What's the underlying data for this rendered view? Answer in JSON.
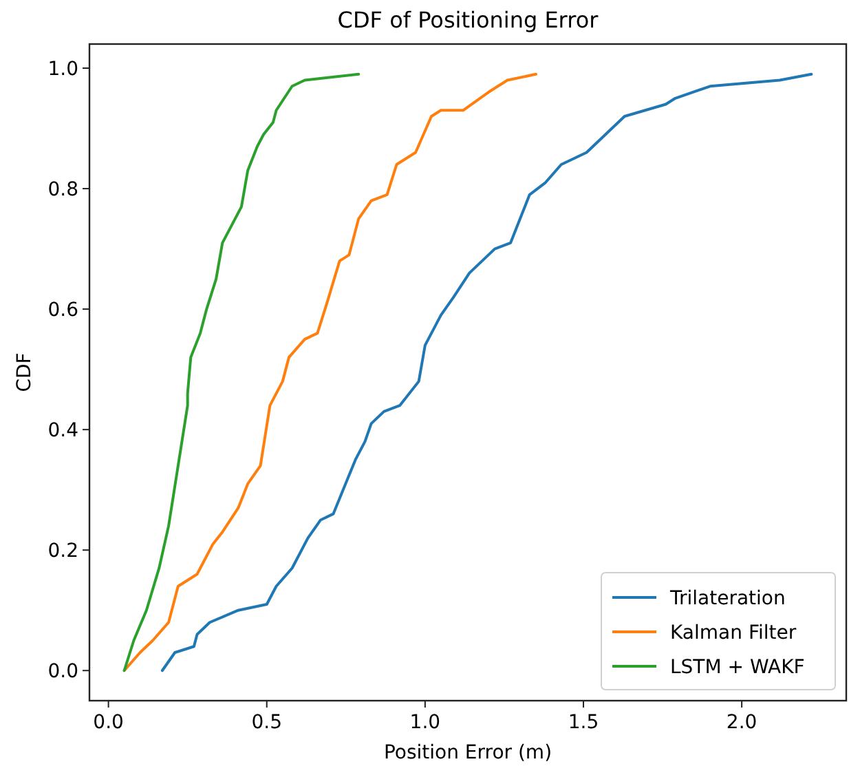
{
  "chart_data": {
    "type": "line",
    "title": "CDF of Positioning Error",
    "xlabel": "Position Error (m)",
    "ylabel": "CDF",
    "xlim": [
      -0.06,
      2.33
    ],
    "ylim": [
      -0.05,
      1.04
    ],
    "xticks": [
      {
        "value": 0,
        "label": "0.0"
      },
      {
        "value": 0.5,
        "label": "0.5"
      },
      {
        "value": 1,
        "label": "1.0"
      },
      {
        "value": 1.5,
        "label": "1.5"
      },
      {
        "value": 2,
        "label": "2.0"
      }
    ],
    "yticks": [
      {
        "value": 0,
        "label": "0.0"
      },
      {
        "value": 0.2,
        "label": "0.2"
      },
      {
        "value": 0.4,
        "label": "0.4"
      },
      {
        "value": 0.6,
        "label": "0.6"
      },
      {
        "value": 0.8,
        "label": "0.8"
      },
      {
        "value": 1,
        "label": "1.0"
      }
    ],
    "grid": false,
    "legend": "bottom right",
    "marker": "none",
    "line_style": "solid",
    "series": [
      {
        "name": "Trilateration",
        "color": "#1f77b4",
        "x": [
          0.17,
          0.21,
          0.27,
          0.28,
          0.32,
          0.41,
          0.5,
          0.53,
          0.58,
          0.63,
          0.67,
          0.71,
          0.78,
          0.81,
          0.83,
          0.87,
          0.92,
          0.98,
          1.0,
          1.05,
          1.09,
          1.14,
          1.22,
          1.27,
          1.3,
          1.33,
          1.38,
          1.43,
          1.51,
          1.57,
          1.63,
          1.76,
          1.79,
          1.9,
          2.12,
          2.22
        ],
        "values": [
          0,
          0.03,
          0.04,
          0.06,
          0.08,
          0.1,
          0.11,
          0.14,
          0.17,
          0.22,
          0.25,
          0.26,
          0.35,
          0.38,
          0.41,
          0.43,
          0.44,
          0.48,
          0.54,
          0.59,
          0.62,
          0.66,
          0.7,
          0.71,
          0.75,
          0.79,
          0.81,
          0.84,
          0.86,
          0.89,
          0.92,
          0.94,
          0.95,
          0.97,
          0.98,
          0.99
        ]
      },
      {
        "name": "Kalman Filter",
        "color": "#ff7f0e",
        "x": [
          0.05,
          0.1,
          0.14,
          0.19,
          0.22,
          0.28,
          0.33,
          0.36,
          0.41,
          0.44,
          0.48,
          0.51,
          0.55,
          0.57,
          0.62,
          0.66,
          0.69,
          0.73,
          0.76,
          0.79,
          0.83,
          0.88,
          0.91,
          0.97,
          1.02,
          1.05,
          1.12,
          1.2,
          1.26,
          1.35
        ],
        "values": [
          0,
          0.03,
          0.05,
          0.08,
          0.14,
          0.16,
          0.21,
          0.23,
          0.27,
          0.31,
          0.34,
          0.44,
          0.48,
          0.52,
          0.55,
          0.56,
          0.61,
          0.68,
          0.69,
          0.75,
          0.78,
          0.79,
          0.84,
          0.86,
          0.92,
          0.93,
          0.93,
          0.96,
          0.98,
          0.99
        ]
      },
      {
        "name": "LSTM + WAKF",
        "color": "#2ca02c",
        "x": [
          0.05,
          0.08,
          0.12,
          0.16,
          0.19,
          0.22,
          0.25,
          0.25,
          0.26,
          0.29,
          0.31,
          0.34,
          0.36,
          0.39,
          0.42,
          0.44,
          0.47,
          0.49,
          0.52,
          0.53,
          0.58,
          0.62,
          0.79
        ],
        "values": [
          0,
          0.05,
          0.1,
          0.17,
          0.24,
          0.34,
          0.44,
          0.46,
          0.52,
          0.56,
          0.6,
          0.65,
          0.71,
          0.74,
          0.77,
          0.83,
          0.87,
          0.89,
          0.91,
          0.93,
          0.97,
          0.98,
          0.99
        ]
      }
    ]
  }
}
